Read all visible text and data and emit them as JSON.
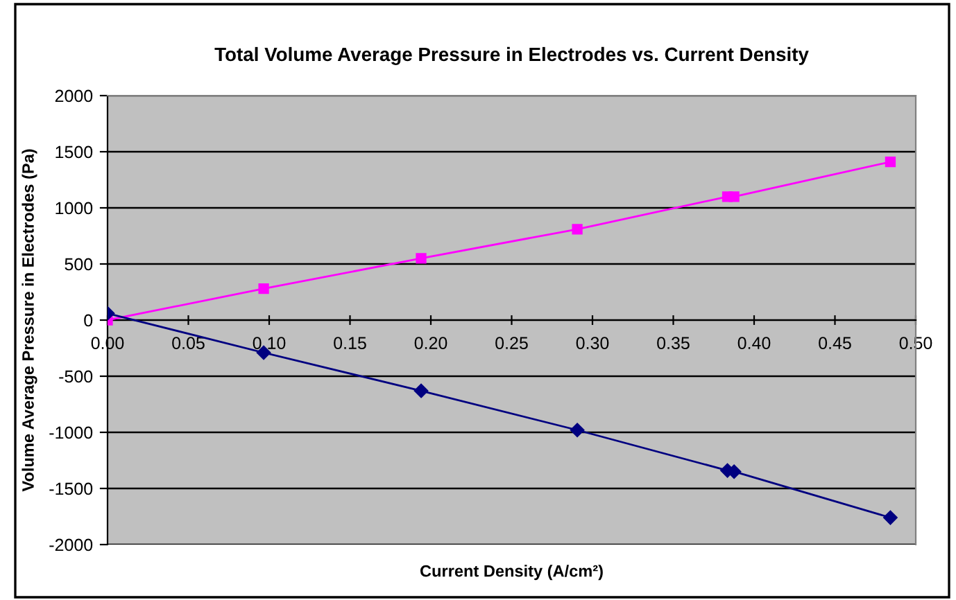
{
  "chart_data": {
    "type": "line",
    "title": "Total Volume Average Pressure in Electrodes vs. Current Density",
    "xlabel": "Current Density (A/cm²)",
    "ylabel": "Volume Average Pressure in Electrodes (Pa)",
    "series": [
      {
        "color": "#ff00ff",
        "marker": "square",
        "x": [
          0.0,
          0.0966,
          0.194,
          0.2906,
          0.3835,
          0.3876,
          0.4843
        ],
        "values": [
          0,
          280,
          550,
          810,
          1100,
          1100,
          1410
        ]
      },
      {
        "color": "#000080",
        "marker": "diamond",
        "x": [
          0.0,
          0.0966,
          0.194,
          0.2906,
          0.3835,
          0.3876,
          0.4843
        ],
        "values": [
          60,
          -290,
          -630,
          -980,
          -1340,
          -1350,
          -1760
        ]
      }
    ],
    "xlim": [
      0,
      0.5
    ],
    "ylim": [
      -2000,
      2000
    ],
    "xticks": [
      {
        "value": 0,
        "label": "0.00"
      },
      {
        "value": 0.05,
        "label": "0.05"
      },
      {
        "value": 0.1,
        "label": "0.10"
      },
      {
        "value": 0.15,
        "label": "0.15"
      },
      {
        "value": 0.2,
        "label": "0.20"
      },
      {
        "value": 0.25,
        "label": "0.25"
      },
      {
        "value": 0.3,
        "label": "0.30"
      },
      {
        "value": 0.35,
        "label": "0.35"
      },
      {
        "value": 0.4,
        "label": "0.40"
      },
      {
        "value": 0.45,
        "label": "0.45"
      },
      {
        "value": 0.5,
        "label": "0.50"
      }
    ],
    "yticks": [
      -2000,
      -1500,
      -1000,
      -500,
      0,
      500,
      1000,
      1500,
      2000
    ],
    "grid": "y",
    "legend": false,
    "line_style": "solid"
  }
}
